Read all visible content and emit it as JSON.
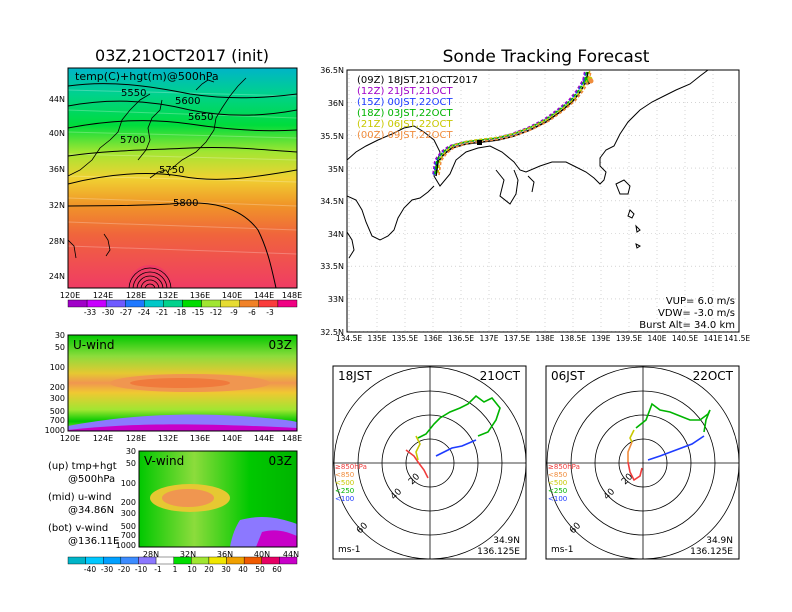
{
  "main_map": {
    "title": "03Z,21OCT2017 (init)",
    "subtitle": "temp(C)+hgt(m)@500hPa",
    "contour_labels": [
      "5550",
      "5600",
      "5650",
      "5700",
      "5750",
      "5800"
    ],
    "lat_ticks": [
      "44N",
      "40N",
      "36N",
      "32N",
      "28N",
      "24N"
    ],
    "lon_ticks": [
      "120E",
      "124E",
      "128E",
      "132E",
      "136E",
      "140E",
      "144E",
      "148E"
    ],
    "colorbar_labels": [
      "-33",
      "-30",
      "-27",
      "-24",
      "-21",
      "-18",
      "-15",
      "-12",
      "-9",
      "-6",
      "-3"
    ],
    "colorbar_colors": [
      "#a000c8",
      "#c800ff",
      "#6e5aff",
      "#1e78ff",
      "#00c8c8",
      "#00d28c",
      "#00dc00",
      "#a0e632",
      "#e6dc32",
      "#f08228",
      "#fa3c3c",
      "#f00082"
    ]
  },
  "u_wind": {
    "label": "U-wind",
    "time": "03Z",
    "p_ticks": [
      "30",
      "50",
      "100",
      "200",
      "300",
      "500",
      "700",
      "1000"
    ],
    "lon_ticks": [
      "120E",
      "124E",
      "128E",
      "132E",
      "136E",
      "140E",
      "144E",
      "148E"
    ]
  },
  "v_wind": {
    "label": "V-wind",
    "time": "03Z",
    "p_ticks": [
      "30",
      "50",
      "100",
      "200",
      "300",
      "500",
      "700",
      "1000"
    ],
    "lat_ticks": [
      "28N",
      "32N",
      "36N",
      "40N",
      "44N"
    ]
  },
  "legend_notes": {
    "up_line1": "(up) tmp+hgt",
    "up_line2": "@500hPa",
    "mid_line1": "(mid) u-wind",
    "mid_line2": "@34.86N",
    "bot_line1": "(bot) v-wind",
    "bot_line2": "@136.11E"
  },
  "wind_colorbar": {
    "labels": [
      "-40",
      "-30",
      "-20",
      "-10",
      "-1",
      "1",
      "10",
      "20",
      "30",
      "40",
      "50",
      "60"
    ],
    "colors": [
      "#00b4c8",
      "#00c8ff",
      "#00a0ff",
      "#3c8cff",
      "#8c78ff",
      "#ffffff",
      "#00dc00",
      "#a0e632",
      "#f0e600",
      "#f0a000",
      "#f05a00",
      "#e60064",
      "#c800c8"
    ]
  },
  "tracking": {
    "title": "Sonde Tracking Forecast",
    "runs": [
      {
        "label": "(09Z)  18JST,21OCT2017",
        "color": "#000000"
      },
      {
        "label": "(12Z)  21JST,21OCT",
        "color": "#a000c8"
      },
      {
        "label": "(15Z)  00JST,22OCT",
        "color": "#1e3cff"
      },
      {
        "label": "(18Z)  03JST,22OCT",
        "color": "#00b400"
      },
      {
        "label": "(21Z)  06JST,22OCT",
        "color": "#c8c800"
      },
      {
        "label": "(00Z)  09JST,22OCT",
        "color": "#f08c3c"
      }
    ],
    "lat_ticks": [
      "36.5N",
      "36N",
      "35.5N",
      "35N",
      "34.5N",
      "34N",
      "33.5N",
      "33N",
      "32.5N"
    ],
    "lon_ticks": [
      "134.5E",
      "135E",
      "135.5E",
      "136E",
      "136.5E",
      "137E",
      "137.5E",
      "138E",
      "138.5E",
      "139E",
      "139.5E",
      "140E",
      "140.5E",
      "141E",
      "141.5E"
    ],
    "params": [
      "VUP=  6.0  m/s",
      "VDW= -3.0  m/s",
      "Burst Alt=  34.0  km"
    ]
  },
  "hodo_left": {
    "time_left": "18JST",
    "time_right": "21OCT",
    "levels": [
      "≥850hPa",
      "<850",
      "<500",
      "<250",
      "<100"
    ],
    "level_colors": [
      "#f03c3c",
      "#f08c3c",
      "#c8c800",
      "#00b400",
      "#1e3cff"
    ],
    "ring_labels": [
      "20",
      "40",
      "60"
    ],
    "unit": "ms-1",
    "loc_lat": "34.9N",
    "loc_lon": "136.125E"
  },
  "hodo_right": {
    "time_left": "06JST",
    "time_right": "22OCT",
    "levels": [
      "≥850hPa",
      "<850",
      "<500",
      "<250",
      "<100"
    ],
    "level_colors": [
      "#f03c3c",
      "#f08c3c",
      "#c8c800",
      "#00b400",
      "#1e3cff"
    ],
    "ring_labels": [
      "20",
      "40",
      "60"
    ],
    "unit": "ms-1",
    "loc_lat": "34.9N",
    "loc_lon": "136.125E"
  }
}
